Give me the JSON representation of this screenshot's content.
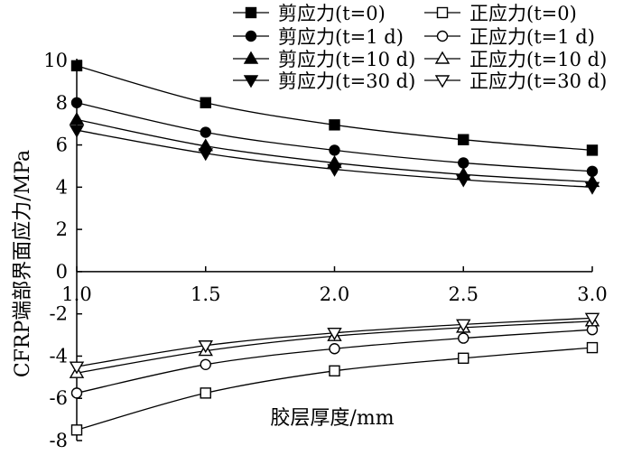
{
  "chart_data": {
    "type": "line",
    "title": "",
    "xlabel": "胶层厚度/mm",
    "ylabel": "CFRP端部界面应力/MPa",
    "x": [
      1.0,
      1.5,
      2.0,
      2.5,
      3.0
    ],
    "xlim": [
      1.0,
      3.0
    ],
    "ylim": [
      -8,
      10
    ],
    "x_ticks": [
      "1.0",
      "1.5",
      "2.0",
      "2.5",
      "3.0"
    ],
    "y_ticks": [
      "10",
      "8",
      "6",
      "4",
      "2",
      "0",
      "-2",
      "-4",
      "-6",
      "-8"
    ],
    "legend_position": "top-right",
    "series": [
      {
        "name": "剪应力(t=0)",
        "kind": "shear",
        "marker": "square",
        "filled": true,
        "values": [
          9.75,
          8.0,
          6.95,
          6.25,
          5.75
        ]
      },
      {
        "name": "剪应力(t=1 d)",
        "kind": "shear",
        "marker": "circle",
        "filled": true,
        "values": [
          8.0,
          6.6,
          5.75,
          5.15,
          4.75
        ]
      },
      {
        "name": "剪应力(t=10 d)",
        "kind": "shear",
        "marker": "triangle-up",
        "filled": true,
        "values": [
          7.2,
          5.95,
          5.15,
          4.6,
          4.25
        ]
      },
      {
        "name": "剪应力(t=30 d)",
        "kind": "shear",
        "marker": "triangle-down",
        "filled": true,
        "values": [
          6.7,
          5.6,
          4.85,
          4.35,
          4.0
        ]
      },
      {
        "name": "正应力(t=0)",
        "kind": "normal",
        "marker": "square",
        "filled": false,
        "values": [
          -7.5,
          -5.75,
          -4.7,
          -4.1,
          -3.6
        ]
      },
      {
        "name": "正应力(t=1 d)",
        "kind": "normal",
        "marker": "circle",
        "filled": false,
        "values": [
          -5.75,
          -4.4,
          -3.65,
          -3.15,
          -2.75
        ]
      },
      {
        "name": "正应力(t=10 d)",
        "kind": "normal",
        "marker": "triangle-up",
        "filled": false,
        "values": [
          -4.8,
          -3.75,
          -3.05,
          -2.65,
          -2.35
        ]
      },
      {
        "name": "正应力(t=30 d)",
        "kind": "normal",
        "marker": "triangle-down",
        "filled": false,
        "values": [
          -4.5,
          -3.5,
          -2.9,
          -2.5,
          -2.2
        ]
      }
    ]
  }
}
